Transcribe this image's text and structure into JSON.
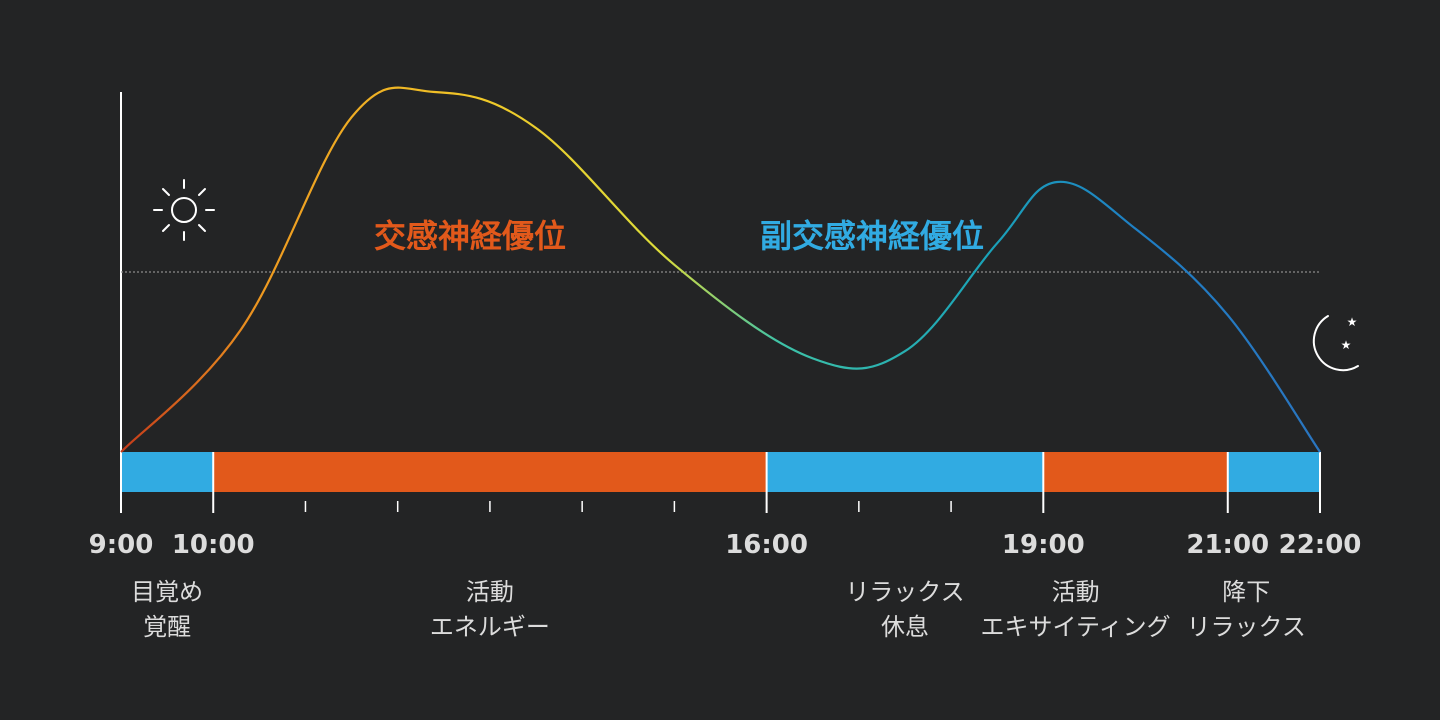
{
  "chart_data": {
    "type": "line",
    "x_range": [
      9,
      22
    ],
    "curve": [
      [
        9.0,
        0
      ],
      [
        10.3,
        34
      ],
      [
        11.5,
        93
      ],
      [
        12.4,
        100
      ],
      [
        13.5,
        90
      ],
      [
        15.0,
        52
      ],
      [
        16.5,
        26
      ],
      [
        17.5,
        28
      ],
      [
        18.5,
        58
      ],
      [
        19.15,
        75
      ],
      [
        20.0,
        62
      ],
      [
        21.0,
        38
      ],
      [
        22.0,
        0
      ]
    ],
    "reference_line": 50,
    "bands": [
      {
        "start": 9,
        "end": 10,
        "state": "parasympathetic"
      },
      {
        "start": 10,
        "end": 16,
        "state": "sympathetic"
      },
      {
        "start": 16,
        "end": 19,
        "state": "parasympathetic"
      },
      {
        "start": 19,
        "end": 21,
        "state": "sympathetic"
      },
      {
        "start": 21,
        "end": 22,
        "state": "parasympathetic"
      }
    ],
    "minor_ticks": [
      11,
      12,
      13,
      14,
      15,
      17,
      18
    ],
    "tick_labels": [
      {
        "x": 9,
        "label": "9:00"
      },
      {
        "x": 10,
        "label": "10:00"
      },
      {
        "x": 16,
        "label": "16:00"
      },
      {
        "x": 19,
        "label": "19:00"
      },
      {
        "x": 21,
        "label": "21:00"
      },
      {
        "x": 22,
        "label": "22:00"
      }
    ],
    "phase_labels": [
      {
        "x": 9.5,
        "lines": [
          "目覚め",
          "覚醒"
        ]
      },
      {
        "x": 13.0,
        "lines": [
          "活動",
          "エネルギー"
        ]
      },
      {
        "x": 17.5,
        "lines": [
          "リラックス",
          "休息"
        ]
      },
      {
        "x": 19.35,
        "lines": [
          "活動",
          "エキサイティング"
        ]
      },
      {
        "x": 21.2,
        "lines": [
          "降下",
          "リラックス"
        ]
      }
    ],
    "annotations": {
      "sympathetic": "交感神経優位",
      "parasympathetic": "副交感神経優位"
    },
    "icons": {
      "left": "sun-icon",
      "right": "moon-with-stars-icon"
    }
  },
  "colors": {
    "background": "#232425",
    "sympathetic": "#e2591b",
    "parasympathetic": "#31abe2",
    "label": "#dcdcdc",
    "gradient": [
      "#c43a1a",
      "#ee9a20",
      "#f0c828",
      "#dcdc3a",
      "#3ec3a8",
      "#1aa3b8",
      "#1f7ec4",
      "#2a75c0"
    ]
  }
}
